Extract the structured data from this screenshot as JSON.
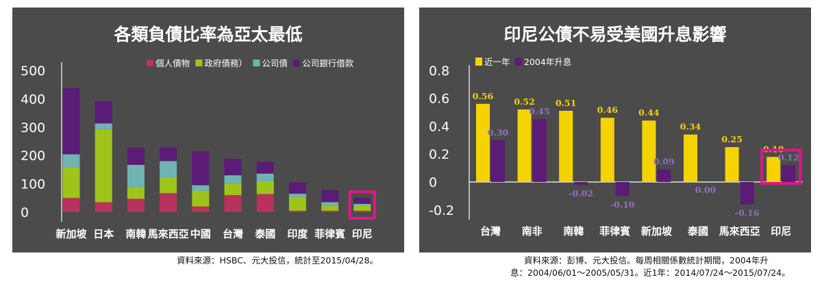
{
  "colors": {
    "panel_bg": "#4b4b4b",
    "text": "#ffffff",
    "highlight_box": "#e0168a",
    "household": "#b7325c",
    "government": "#9ec41a",
    "corporate_bond": "#6fb3b3",
    "corporate_loan": "#5a1c77",
    "recent_year": "#f5d300",
    "y2004": "#5a1c77",
    "label_purple": "#8f6fc2",
    "label_yellow": "#f5d300"
  },
  "chart_data": [
    {
      "type": "bar",
      "stacked": true,
      "title": "各類負債比率為亞太最低",
      "categories": [
        "新加坡",
        "日本",
        "南韓",
        "馬來西亞",
        "中國",
        "台灣",
        "泰國",
        "印度",
        "菲律賓",
        "印尼"
      ],
      "series": [
        {
          "name": "個人債物",
          "color_key": "household",
          "values": [
            50,
            35,
            47,
            67,
            20,
            60,
            64,
            5,
            5,
            5
          ]
        },
        {
          "name": "政府債務）",
          "color_key": "government",
          "values": [
            108,
            258,
            40,
            55,
            55,
            40,
            45,
            47,
            17,
            18
          ]
        },
        {
          "name": "公司債",
          "color_key": "corporate_bond",
          "values": [
            46,
            20,
            80,
            58,
            20,
            30,
            27,
            13,
            13,
            6
          ]
        },
        {
          "name": "公司銀行借款",
          "color_key": "corporate_loan",
          "values": [
            234,
            78,
            60,
            48,
            120,
            58,
            42,
            40,
            43,
            21
          ]
        }
      ],
      "yticks": [
        0,
        100,
        200,
        300,
        400,
        500
      ],
      "ylim": [
        0,
        500
      ],
      "legend_position": "top-right",
      "highlight_category": "印尼",
      "source": "資料來源：HSBC、元大投信，統計至2015/04/28。"
    },
    {
      "type": "bar",
      "title": "印尼公債不易受美國升息影響",
      "categories": [
        "台灣",
        "南非",
        "南韓",
        "菲律賓",
        "新加坡",
        "泰國",
        "馬來西亞",
        "印尼"
      ],
      "series": [
        {
          "name": "近一年",
          "color_key": "recent_year",
          "values": [
            0.56,
            0.52,
            0.51,
            0.46,
            0.44,
            0.34,
            0.25,
            0.18
          ],
          "labels": [
            "0.56",
            "0.52",
            "0.51",
            "0.46",
            "0.44",
            "0.34",
            "0.25",
            "0.18"
          ]
        },
        {
          "name": "2004年升息",
          "color_key": "y2004",
          "values": [
            0.3,
            0.45,
            -0.02,
            -0.1,
            0.09,
            0.0,
            -0.16,
            0.12
          ],
          "labels": [
            "0.30",
            "0.45",
            "-0.02",
            "-0.10",
            "0.09",
            "0.00",
            "-0.16",
            "0.12"
          ]
        }
      ],
      "yticks": [
        "0.8",
        "0.6",
        "0.4",
        "0.2",
        "0",
        "-0.2"
      ],
      "ylim": [
        -0.2,
        0.8
      ],
      "legend_position": "top-left",
      "highlight_category": "印尼",
      "source_line1": "資料來源：彭博、元大投信。每周相關係數統計期間，2004年升",
      "source_line2": "息：2004/06/01～2005/05/31。近1年：2014/07/24～2015/07/24。"
    }
  ]
}
